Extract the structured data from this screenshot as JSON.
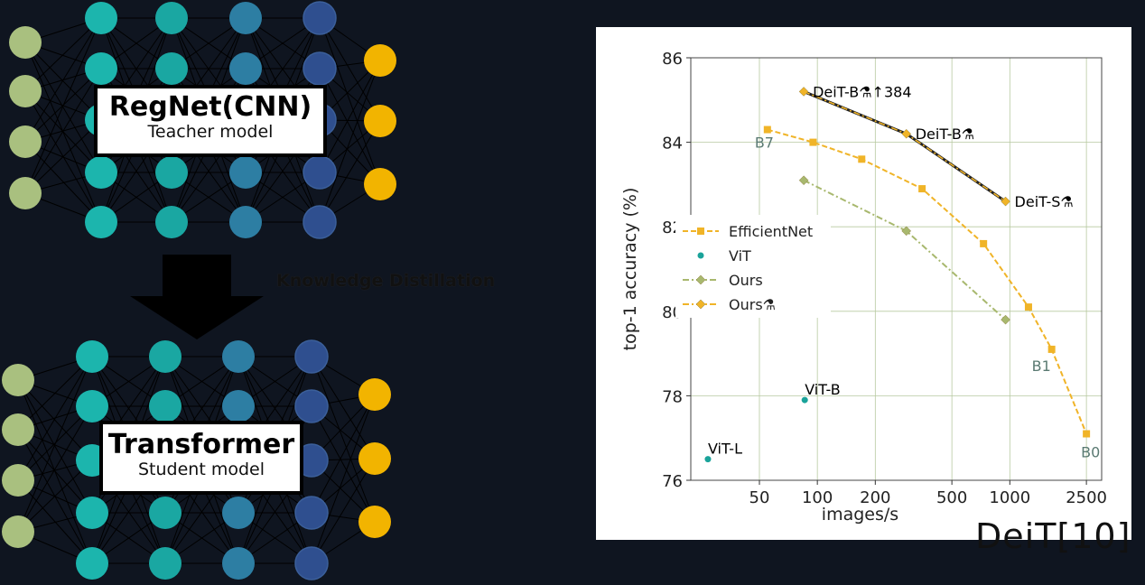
{
  "diagram": {
    "teacher": {
      "title": "RegNet(CNN)",
      "subtitle": "Teacher model"
    },
    "student": {
      "title": "Transformer",
      "subtitle": "Student model"
    },
    "arrow_label": "Knowledge Distillation",
    "citation": "DeiT[10]",
    "colors": {
      "input": "#a9c07f",
      "hidden1": "#1cb5ad",
      "hidden2": "#1aa7a2",
      "hidden3": "#2d7ea3",
      "hidden4": "#2f4f8f",
      "output": "#f2b400",
      "edge": "#000000",
      "background": "#0f1520"
    }
  },
  "chart_data": {
    "type": "scatter",
    "xlabel": "images/s",
    "ylabel": "top-1 accuracy (%)",
    "x_scale": "log",
    "xlim": [
      22,
      3000
    ],
    "ylim": [
      76,
      86
    ],
    "x_ticks": [
      50,
      100,
      200,
      500,
      1000,
      2500
    ],
    "y_ticks": [
      76,
      78,
      80,
      82,
      84,
      86
    ],
    "grid": true,
    "legend_position": "center-left",
    "series": [
      {
        "name": "EfficientNet",
        "color": "#f0b428",
        "marker": "square",
        "line": "dashed",
        "x": [
          55,
          95,
          170,
          350,
          730,
          1250,
          1650,
          2500
        ],
        "y": [
          84.3,
          84.0,
          83.6,
          82.9,
          81.6,
          80.1,
          79.1,
          77.1
        ]
      },
      {
        "name": "ViT",
        "color": "#1aa39a",
        "marker": "circle",
        "line": "none",
        "x": [
          27,
          86
        ],
        "y": [
          76.5,
          77.9
        ]
      },
      {
        "name": "Ours",
        "color": "#a8b86e",
        "marker": "diamond",
        "line": "dashdot",
        "x": [
          85,
          290,
          950
        ],
        "y": [
          83.1,
          81.9,
          79.8
        ]
      },
      {
        "name": "Ours⚗",
        "color": "#f0b428",
        "marker": "diamond",
        "line": "dashdot",
        "x": [
          85,
          290,
          950
        ],
        "y": [
          85.2,
          84.2,
          82.6
        ]
      }
    ],
    "annotations": [
      {
        "text": "DeiT-B⚗↑384",
        "x": 85,
        "y": 85.2,
        "color": "#000000"
      },
      {
        "text": "DeiT-B⚗",
        "x": 290,
        "y": 84.2,
        "color": "#000000"
      },
      {
        "text": "DeiT-S⚗",
        "x": 950,
        "y": 82.6,
        "color": "#000000"
      },
      {
        "text": "B7",
        "x": 55,
        "y": 84.3,
        "color": "#5a7a72"
      },
      {
        "text": "B1",
        "x": 1650,
        "y": 79.1,
        "color": "#5a7a72"
      },
      {
        "text": "B0",
        "x": 2500,
        "y": 77.1,
        "color": "#5a7a72"
      },
      {
        "text": "ViT-B",
        "x": 86,
        "y": 77.9,
        "color": "#000000"
      },
      {
        "text": "ViT-L",
        "x": 27,
        "y": 76.5,
        "color": "#000000"
      }
    ]
  }
}
